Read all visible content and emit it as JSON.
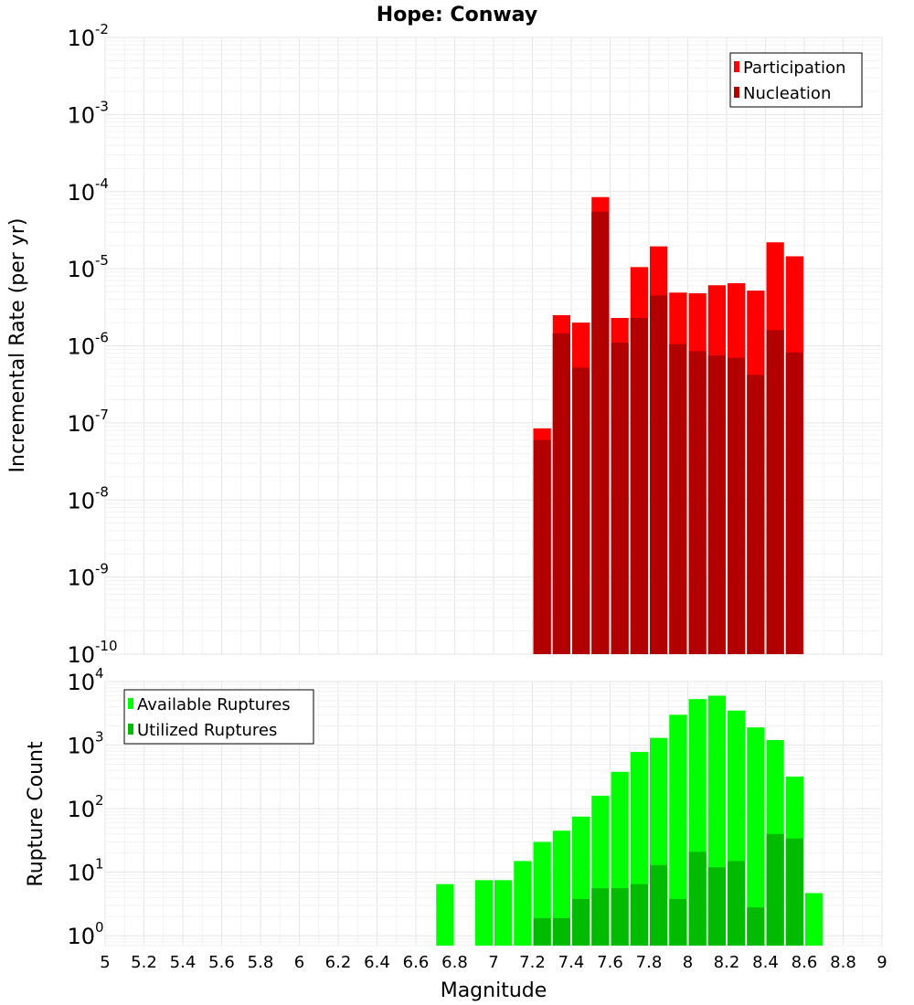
{
  "chart_data": [
    {
      "type": "bar",
      "title": "Hope: Conway",
      "ylabel": "Incremental Rate (per yr)",
      "xlabel": "",
      "y_scale": "log",
      "ylim": [
        1e-10,
        0.01
      ],
      "xlim": [
        5,
        9
      ],
      "y_ticks": [
        {
          "base": "10",
          "exp": "-10"
        },
        {
          "base": "10",
          "exp": "-9"
        },
        {
          "base": "10",
          "exp": "-8"
        },
        {
          "base": "10",
          "exp": "-7"
        },
        {
          "base": "10",
          "exp": "-6"
        },
        {
          "base": "10",
          "exp": "-5"
        },
        {
          "base": "10",
          "exp": "-4"
        },
        {
          "base": "10",
          "exp": "-3"
        },
        {
          "base": "10",
          "exp": "-2"
        }
      ],
      "grid": true,
      "legend_position": "top-right",
      "bin_width": 0.1,
      "x": [
        7.25,
        7.35,
        7.45,
        7.55,
        7.65,
        7.75,
        7.85,
        7.95,
        8.05,
        8.15,
        8.25,
        8.35,
        8.45,
        8.55
      ],
      "series": [
        {
          "name": "Participation",
          "color": "#ff0000",
          "values": [
            8.5e-08,
            2.5e-06,
            2e-06,
            8.5e-05,
            2.3e-06,
            1.05e-05,
            1.95e-05,
            4.9e-06,
            4.8e-06,
            6.1e-06,
            6.5e-06,
            5.2e-06,
            2.2e-05,
            1.45e-05
          ]
        },
        {
          "name": "Nucleation",
          "color": "#b20000",
          "values": [
            6e-08,
            1.45e-06,
            5.2e-07,
            5.5e-05,
            1.1e-06,
            2.3e-06,
            4.5e-06,
            1.05e-06,
            8.5e-07,
            7.5e-07,
            7e-07,
            4.2e-07,
            1.6e-06,
            8.2e-07
          ]
        }
      ]
    },
    {
      "type": "bar",
      "title": "",
      "ylabel": "Rupture Count",
      "xlabel": "Magnitude",
      "y_scale": "log",
      "ylim": [
        0.7,
        10000
      ],
      "xlim": [
        5,
        9
      ],
      "x_ticks": [
        "5",
        "5.2",
        "5.4",
        "5.6",
        "5.8",
        "6",
        "6.2",
        "6.4",
        "6.6",
        "6.8",
        "7",
        "7.2",
        "7.4",
        "7.6",
        "7.8",
        "8",
        "8.2",
        "8.4",
        "8.6",
        "8.8",
        "9"
      ],
      "y_ticks": [
        {
          "base": "10",
          "exp": "0"
        },
        {
          "base": "10",
          "exp": "1"
        },
        {
          "base": "10",
          "exp": "2"
        },
        {
          "base": "10",
          "exp": "3"
        },
        {
          "base": "10",
          "exp": "4"
        }
      ],
      "grid": true,
      "legend_position": "top-left",
      "bin_width": 0.1,
      "series": [
        {
          "name": "Available Ruptures",
          "color": "#00ff00",
          "x": [
            6.75,
            6.95,
            7.05,
            7.15,
            7.25,
            7.35,
            7.45,
            7.55,
            7.65,
            7.75,
            7.85,
            7.95,
            8.05,
            8.15,
            8.25,
            8.35,
            8.45,
            8.55,
            8.65
          ],
          "values": [
            6.5,
            7.5,
            7.5,
            15,
            30,
            45,
            75,
            160,
            380,
            780,
            1300,
            3000,
            5300,
            6000,
            3500,
            1900,
            1200,
            320,
            4.7
          ]
        },
        {
          "name": "Utilized Ruptures",
          "color": "#00bb00",
          "x": [
            7.25,
            7.35,
            7.45,
            7.55,
            7.65,
            7.75,
            7.85,
            7.95,
            8.05,
            8.15,
            8.25,
            8.35,
            8.45,
            8.55
          ],
          "values": [
            1.9,
            1.9,
            3.8,
            5.6,
            5.6,
            6.5,
            13,
            3.8,
            21,
            12,
            15,
            2.8,
            40,
            34
          ]
        }
      ]
    }
  ]
}
